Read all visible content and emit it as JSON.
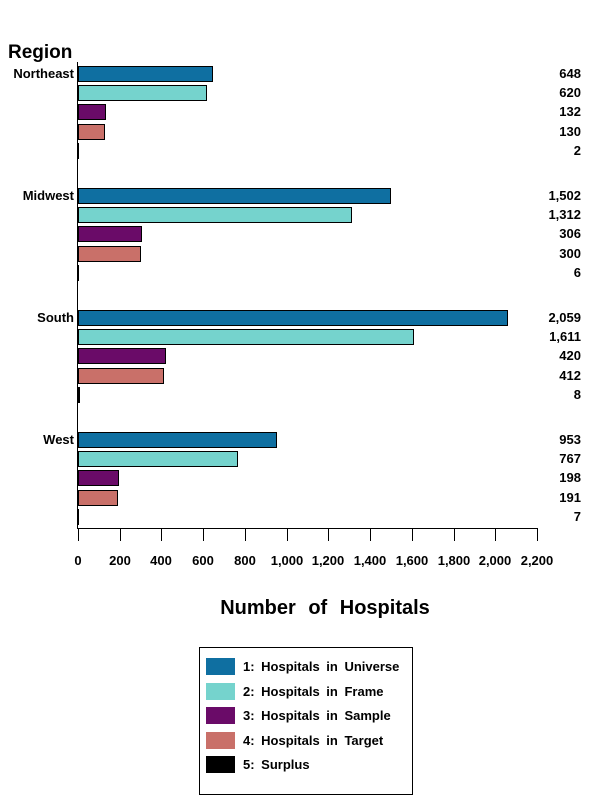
{
  "chart_data": {
    "type": "bar",
    "orientation": "horizontal",
    "ylabel": "Region",
    "xlabel": "Number of Hospitals",
    "categories": [
      "Northeast",
      "Midwest",
      "South",
      "West"
    ],
    "series": [
      {
        "name": "1: Hospitals in Universe",
        "color": "#0F6FA1",
        "values": [
          648,
          1502,
          2059,
          953
        ],
        "labels": [
          "648",
          "1,502",
          "2,059",
          "953"
        ]
      },
      {
        "name": "2: Hospitals in Frame",
        "color": "#75D3CD",
        "values": [
          620,
          1312,
          1611,
          767
        ],
        "labels": [
          "620",
          "1,312",
          "1,611",
          "767"
        ]
      },
      {
        "name": "3: Hospitals in Sample",
        "color": "#6A0B68",
        "values": [
          132,
          306,
          420,
          198
        ],
        "labels": [
          "132",
          "306",
          "420",
          "198"
        ]
      },
      {
        "name": "4: Hospitals in Target",
        "color": "#C97069",
        "values": [
          130,
          300,
          412,
          191
        ],
        "labels": [
          "130",
          "300",
          "412",
          "191"
        ]
      },
      {
        "name": "5: Surplus",
        "color": "#000000",
        "values": [
          2,
          6,
          8,
          7
        ],
        "labels": [
          "2",
          "6",
          "8",
          "7"
        ]
      }
    ],
    "xlim": [
      0,
      2200
    ],
    "xticks": [
      0,
      200,
      400,
      600,
      800,
      1000,
      1200,
      1400,
      1600,
      1800,
      2000,
      2200
    ],
    "xtick_labels": [
      "0",
      "200",
      "400",
      "600",
      "800",
      "1,000",
      "1,200",
      "1,400",
      "1,600",
      "1,800",
      "2,000",
      "2,200"
    ],
    "grid": false,
    "legend_position": "bottom-center",
    "bar_border_color": "#000000",
    "background_color": "#FFFFFF"
  }
}
